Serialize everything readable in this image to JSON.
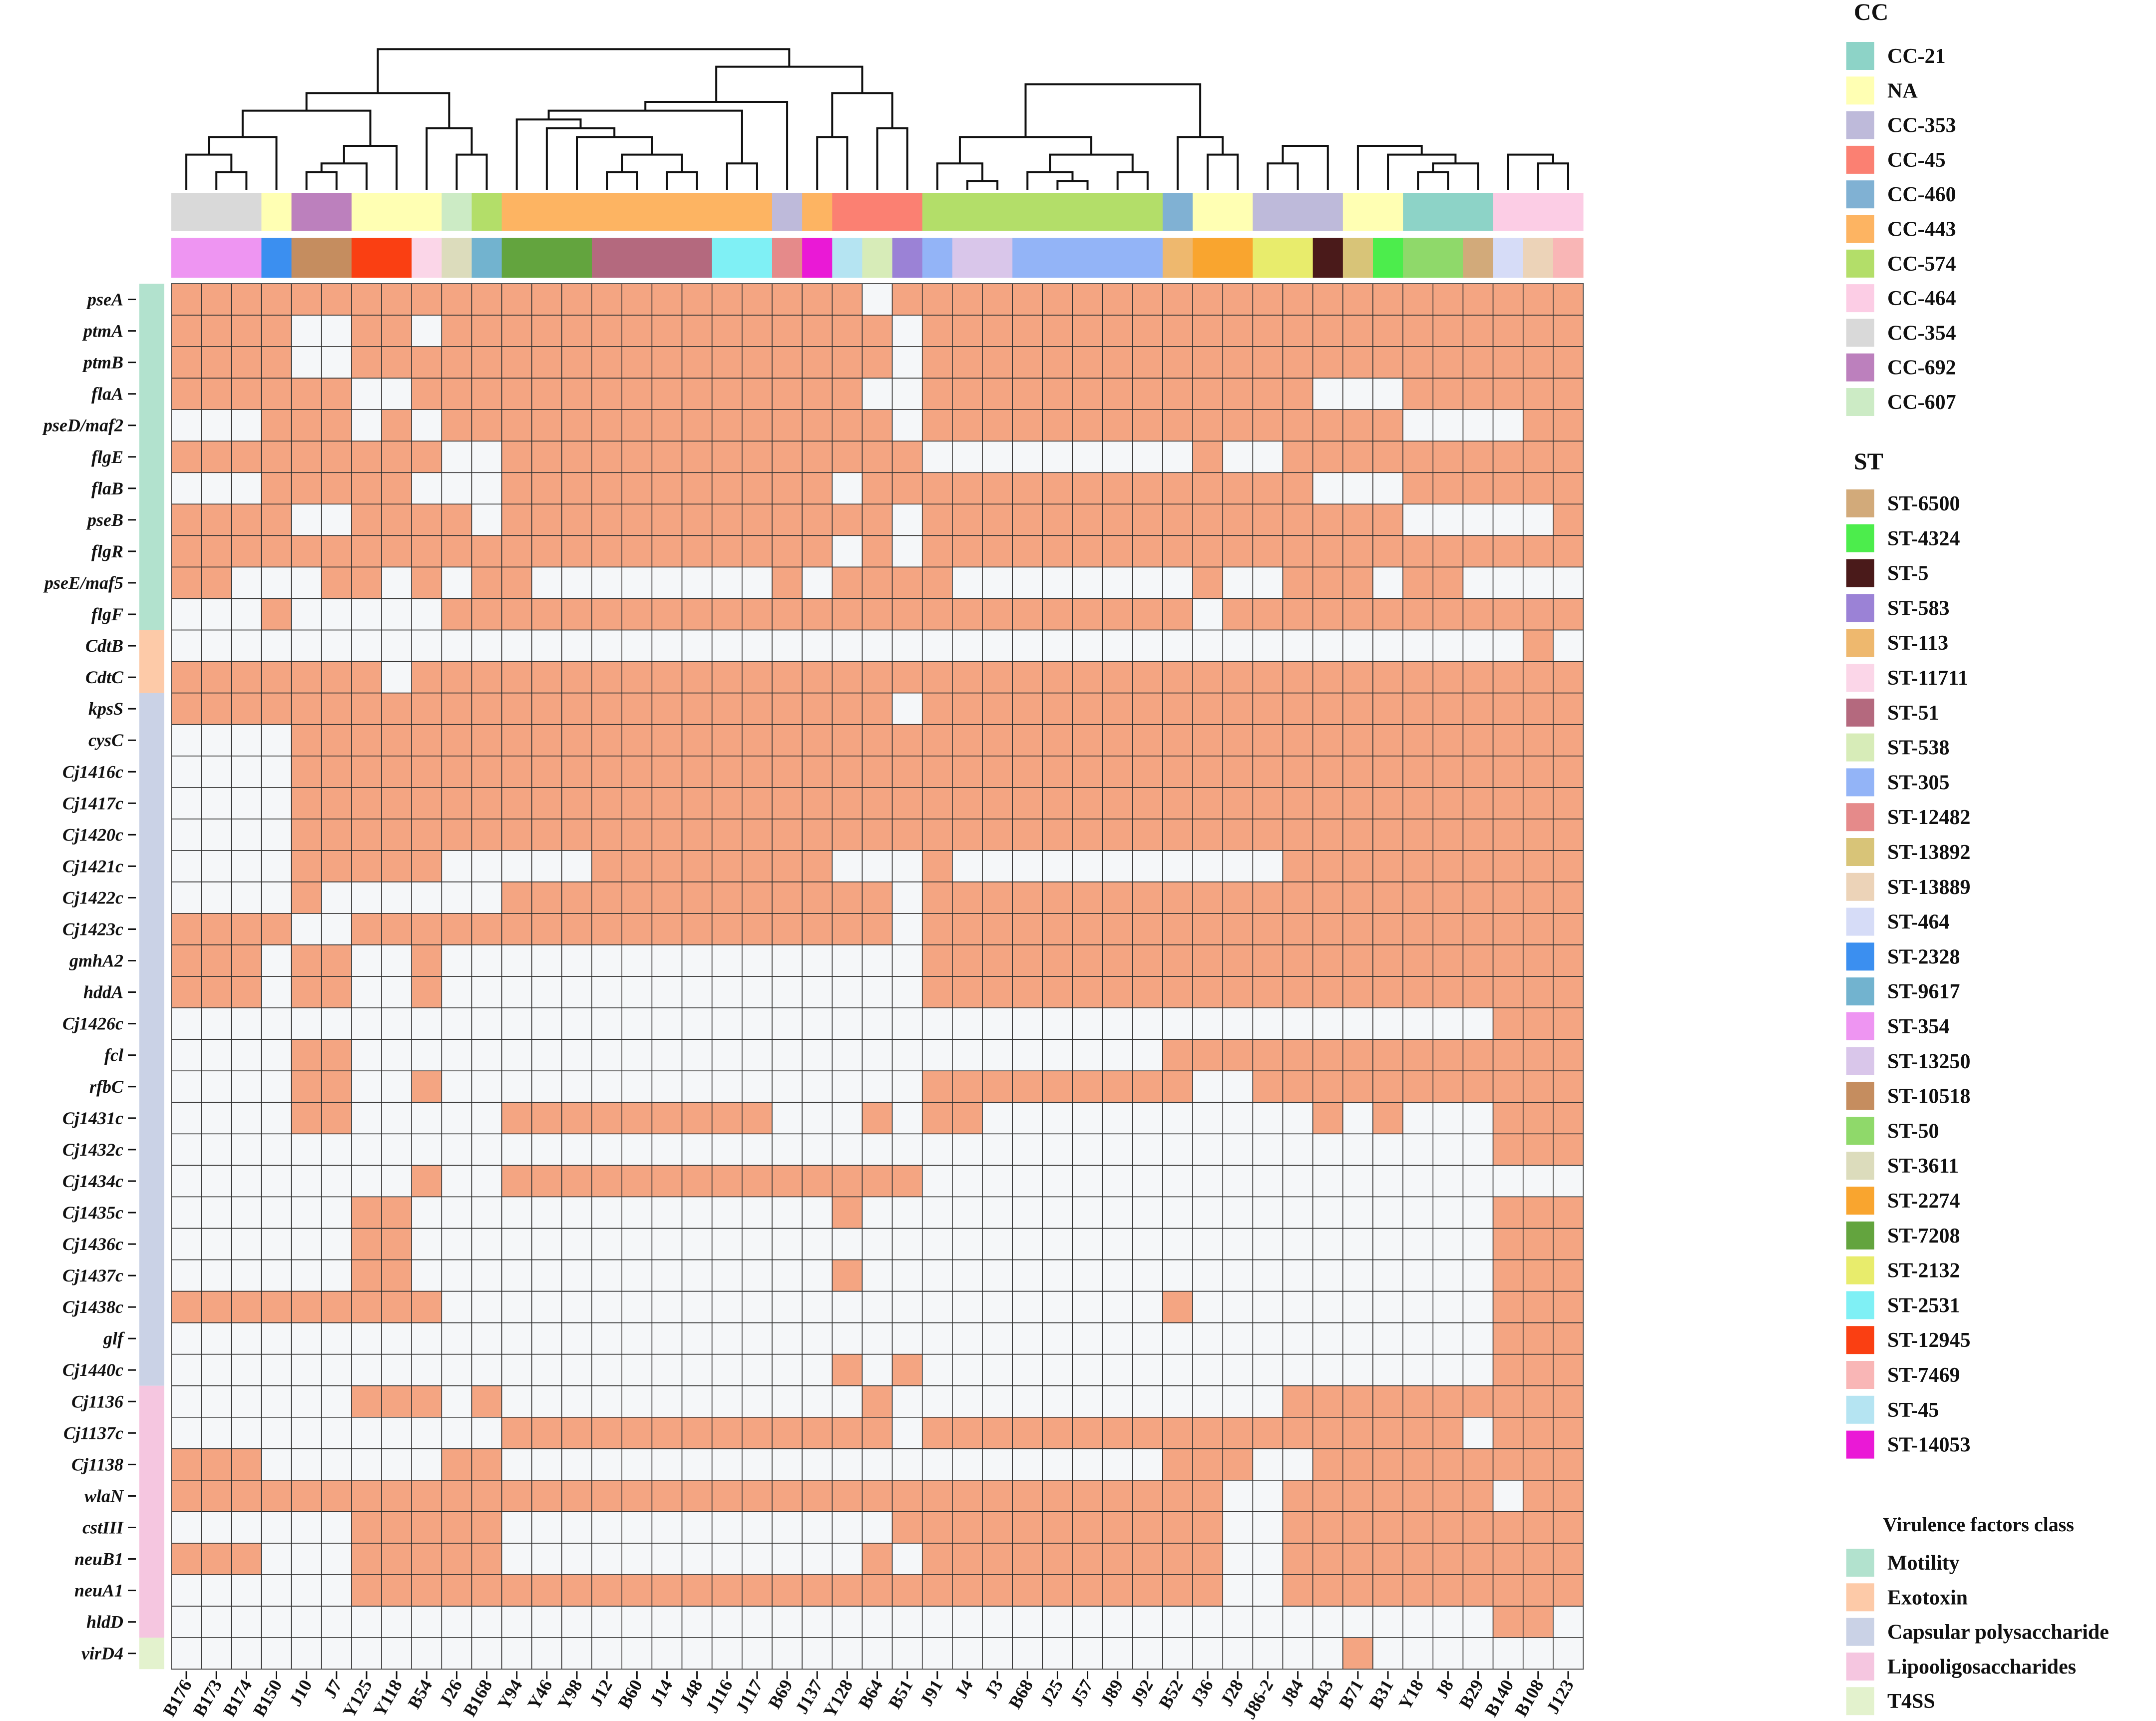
{
  "chart_data": {
    "type": "heatmap",
    "presence_color": "#f4a582",
    "absence_color": "#f5f7f9",
    "grid_color": "#333333",
    "columns": [
      "B176",
      "B173",
      "B174",
      "B150",
      "J10",
      "J7",
      "Y125",
      "Y118",
      "B54",
      "J26",
      "B168",
      "Y94",
      "Y46",
      "Y98",
      "J12",
      "B60",
      "J14",
      "J48",
      "J116",
      "J117",
      "B69",
      "J137",
      "Y128",
      "B64",
      "B51",
      "J91",
      "J4",
      "J3",
      "B68",
      "J25",
      "J57",
      "J89",
      "J92",
      "B52",
      "J36",
      "J28",
      "J86-2",
      "J84",
      "B43",
      "B71",
      "B31",
      "Y18",
      "J8",
      "B29",
      "B140",
      "B108",
      "J123"
    ],
    "rows": [
      "pseA",
      "ptmA",
      "ptmB",
      "flaA",
      "pseD/maf2",
      "flgE",
      "flaB",
      "pseB",
      "flgR",
      "pseE/maf5",
      "flgF",
      "CdtB",
      "CdtC",
      "kpsS",
      "cysC",
      "Cj1416c",
      "Cj1417c",
      "Cj1420c",
      "Cj1421c",
      "Cj1422c",
      "Cj1423c",
      "gmhA2",
      "hddA",
      "Cj1426c",
      "fcl",
      "rfbC",
      "Cj1431c",
      "Cj1432c",
      "Cj1434c",
      "Cj1435c",
      "Cj1436c",
      "Cj1437c",
      "Cj1438c",
      "glf",
      "Cj1440c",
      "Cj1136",
      "Cj1137c",
      "Cj1138",
      "wlaN",
      "cstIII",
      "neuB1",
      "neuA1",
      "hldD",
      "virD4"
    ],
    "matrix": [
      "11111111111111111111111011111111111111111111111",
      "11110011011111111111111101111111111111111111111",
      "11110011111111111111111101111111111111111111111",
      "11111100111111111111111001111111111111000111111",
      "00011101011111111111111101111111111111111000011",
      "11111111100111111111111110000000001001111111111",
      "00011111000111111111110111111111111111000111111",
      "11110011110111111111111101111111111111111000001",
      "11111111111111111111110101111111111111111111111",
      "11000110101100000000101111000000001001110110000",
      "00010000011111111111111111111111110111111111111",
      "00000000000000000000000000000000000000000000010",
      "11111110111111111111111111111111111111111111111",
      "11111111111111111111111101111111111111111111111",
      "00001111111111111111111111111111111111111111111",
      "00001111111111111111111111111111111111111111111",
      "00001111111111111111111111111111111111111111111",
      "00001111111111111111111111111111111111111111111",
      "00001111100000111111110001000000000001111111111",
      "00001000000111111111111101111111111111111111111",
      "11110011111111111111111101111111111111111111111",
      "11101100100000000000000001111111111111111111111",
      "11101100100000000000000001111111111111111111111",
      "00000000000000000000000000000000000000000000111",
      "00001100000000000000000000000000011111111111111",
      "00001100100000000000000001111111110011111111111",
      "00001100000111111111000101100000000000101000111",
      "00000000000000000000000000000000000000000000111",
      "00000000100111111111111110000000000000000000000",
      "00000011000000000000001000000000000000000000111",
      "00000011000000000000000000000000000000000000111",
      "00000011000000000000001000000000000000000000111",
      "11111111100000000000000000000000010000000000111",
      "00000000000000000000000000000000000000000000111",
      "00000000000000000000001010000000000000000000111",
      "00000011101000000000000100000000000001111111111",
      "00000000000111111111111101111111111111111110111",
      "11100000011000000000000000000000011100111111111",
      "11111111111111111111111111111111111001111111011",
      "00000011111000000000000011111111111001111111111",
      "11100011111000000000000101111111111001111111111",
      "00000011111111111111111111111111111001111111111",
      "00000000000000000000000000000000000000000000110",
      "00000000000000000000000000000000000000010000000"
    ],
    "row_class_groups": [
      {
        "class": "Motility",
        "count": 11
      },
      {
        "class": "Exotoxin",
        "count": 2
      },
      {
        "class": "Capsular polysaccharide",
        "count": 22
      },
      {
        "class": "Lipooligosaccharides",
        "count": 8
      },
      {
        "class": "T4SS",
        "count": 1
      }
    ],
    "cc_annotation_runs": [
      {
        "label": "CC-354",
        "count": 3
      },
      {
        "label": "NA",
        "count": 1
      },
      {
        "label": "CC-692",
        "count": 2
      },
      {
        "label": "NA",
        "count": 3
      },
      {
        "label": "CC-607",
        "count": 1
      },
      {
        "label": "CC-574",
        "count": 1
      },
      {
        "label": "CC-443",
        "count": 9
      },
      {
        "label": "CC-353",
        "count": 1
      },
      {
        "label": "CC-443",
        "count": 1
      },
      {
        "label": "CC-45",
        "count": 3
      },
      {
        "label": "CC-574",
        "count": 8
      },
      {
        "label": "CC-460",
        "count": 1
      },
      {
        "label": "NA",
        "count": 2
      },
      {
        "label": "CC-353",
        "count": 3
      },
      {
        "label": "NA",
        "count": 2
      },
      {
        "label": "CC-21",
        "count": 3
      },
      {
        "label": "CC-464",
        "count": 3
      }
    ],
    "st_annotation_runs": [
      {
        "label": "ST-354",
        "count": 3
      },
      {
        "label": "ST-2328",
        "count": 1
      },
      {
        "label": "ST-10518",
        "count": 2
      },
      {
        "label": "ST-12945",
        "count": 2
      },
      {
        "label": "ST-11711",
        "count": 1
      },
      {
        "label": "ST-3611",
        "count": 1
      },
      {
        "label": "ST-9617",
        "count": 1
      },
      {
        "label": "ST-7208",
        "count": 3
      },
      {
        "label": "ST-51",
        "count": 4
      },
      {
        "label": "ST-2531",
        "count": 2
      },
      {
        "label": "ST-12482",
        "count": 1
      },
      {
        "label": "ST-14053",
        "count": 1
      },
      {
        "label": "ST-45",
        "count": 1
      },
      {
        "label": "ST-538",
        "count": 1
      },
      {
        "label": "ST-583",
        "count": 1
      },
      {
        "label": "ST-305",
        "count": 1
      },
      {
        "label": "ST-13250",
        "count": 2
      },
      {
        "label": "ST-305",
        "count": 5
      },
      {
        "label": "ST-113",
        "count": 1
      },
      {
        "label": "ST-2274",
        "count": 2
      },
      {
        "label": "ST-2132",
        "count": 2
      },
      {
        "label": "ST-5",
        "count": 1
      },
      {
        "label": "ST-13892",
        "count": 1
      },
      {
        "label": "ST-4324",
        "count": 1
      },
      {
        "label": "ST-50",
        "count": 2
      },
      {
        "label": "ST-6500",
        "count": 1
      },
      {
        "label": "ST-464",
        "count": 1
      },
      {
        "label": "ST-13889",
        "count": 1
      },
      {
        "label": "ST-7469",
        "count": 1
      }
    ],
    "dendrogram_merges": [
      {
        "a": "B173",
        "b": "B174",
        "h": 0.1
      },
      {
        "a": "B176",
        "b": "B173+B174",
        "h": 0.2
      },
      {
        "a": "J10",
        "b": "J7",
        "h": 0.1
      },
      {
        "a": "B176+B173+B174",
        "b": "B150",
        "h": 0.3
      },
      {
        "a": "J10+J7",
        "b": "Y125",
        "h": 0.15
      },
      {
        "a": "J10+J7+Y125",
        "b": "Y118",
        "h": 0.25
      },
      {
        "a": "B176-B150",
        "b": "J10-Y118",
        "h": 0.45
      },
      {
        "a": "J26",
        "b": "B168",
        "h": 0.2
      },
      {
        "a": "B54",
        "b": "J26+B168",
        "h": 0.35
      },
      {
        "a": "B176-Y118",
        "b": "B54-B168",
        "h": 0.55
      },
      {
        "a": "J12",
        "b": "B60",
        "h": 0.1
      },
      {
        "a": "J14",
        "b": "J48",
        "h": 0.1
      },
      {
        "a": "J12+B60",
        "b": "J14+J48",
        "h": 0.2
      },
      {
        "a": "Y98",
        "b": "J12-J48",
        "h": 0.3
      },
      {
        "a": "Y46",
        "b": "Y98-J48",
        "h": 0.35
      },
      {
        "a": "Y94",
        "b": "Y46-J48",
        "h": 0.4
      },
      {
        "a": "J116",
        "b": "J117",
        "h": 0.15
      },
      {
        "a": "Y94-J48",
        "b": "J116+J117",
        "h": 0.45
      },
      {
        "a": "Y94-J117",
        "b": "B69",
        "h": 0.5
      },
      {
        "a": "J137",
        "b": "Y128",
        "h": 0.3
      },
      {
        "a": "B64",
        "b": "B51",
        "h": 0.35
      },
      {
        "a": "J137+Y128",
        "b": "B64+B51",
        "h": 0.55
      },
      {
        "a": "Y94-B69",
        "b": "J137-B51",
        "h": 0.7
      },
      {
        "a": "B176-B168",
        "b": "Y94-B51",
        "h": 0.8
      },
      {
        "a": "J4",
        "b": "J3",
        "h": 0.05
      },
      {
        "a": "J91",
        "b": "J4+J3",
        "h": 0.15
      },
      {
        "a": "J25",
        "b": "J57",
        "h": 0.05
      },
      {
        "a": "B68",
        "b": "J25+J57",
        "h": 0.1
      },
      {
        "a": "J89",
        "b": "J92",
        "h": 0.1
      },
      {
        "a": "B68-J57",
        "b": "J89+J92",
        "h": 0.2
      },
      {
        "a": "J91-J3",
        "b": "B68-J92",
        "h": 0.3
      },
      {
        "a": "J36",
        "b": "J28",
        "h": 0.2
      },
      {
        "a": "B52",
        "b": "J36+J28",
        "h": 0.3
      },
      {
        "a": "J91-J92",
        "b": "B52-J28",
        "h": 0.6
      },
      {
        "a": "J86-2",
        "b": "J84",
        "h": 0.15
      },
      {
        "a": "J86-2+J84",
        "b": "B43",
        "h": 0.25
      },
      {
        "a": "Y18",
        "b": "J8",
        "h": 0.1
      },
      {
        "a": "Y18+J8",
        "b": "B29",
        "h": 0.15
      },
      {
        "a": "B31",
        "b": "Y18-B29",
        "h": 0.2
      },
      {
        "a": "B71",
        "b": "B31-B29",
        "h": 0.25
      },
      {
        "a": "J86-2-B43",
        "b": "B71-B29",
        "h": 0.5
      },
      {
        "a": "B108",
        "b": "J123",
        "h": 0.15
      },
      {
        "a": "B140",
        "b": "B108+J123",
        "h": 0.2
      },
      {
        "a": "J86-2-B29",
        "b": "B140-J123",
        "h": 0.55
      },
      {
        "a": "J91-J28",
        "b": "J86-2-J123",
        "h": 0.75
      },
      {
        "a": "B176-B51",
        "b": "J91-J123",
        "h": 1.0
      }
    ],
    "legend_cc": {
      "title": "CC",
      "items": [
        {
          "label": "CC-21",
          "color": "#8dd3c7"
        },
        {
          "label": "NA",
          "color": "#ffffb3"
        },
        {
          "label": "CC-353",
          "color": "#bebada"
        },
        {
          "label": "CC-45",
          "color": "#fb8072"
        },
        {
          "label": "CC-460",
          "color": "#80b1d3"
        },
        {
          "label": "CC-443",
          "color": "#fdb462"
        },
        {
          "label": "CC-574",
          "color": "#b3de69"
        },
        {
          "label": "CC-464",
          "color": "#fccde5"
        },
        {
          "label": "CC-354",
          "color": "#d9d9d9"
        },
        {
          "label": "CC-692",
          "color": "#bc80bd"
        },
        {
          "label": "CC-607",
          "color": "#ccebc5"
        }
      ]
    },
    "legend_st": {
      "title": "ST",
      "items": [
        {
          "label": "ST-6500",
          "color": "#d2aa7a"
        },
        {
          "label": "ST-4324",
          "color": "#4ced4c"
        },
        {
          "label": "ST-5",
          "color": "#4a1a1a"
        },
        {
          "label": "ST-583",
          "color": "#9b82d6"
        },
        {
          "label": "ST-113",
          "color": "#eeb86e"
        },
        {
          "label": "ST-11711",
          "color": "#fbd6e8"
        },
        {
          "label": "ST-51",
          "color": "#b4697e"
        },
        {
          "label": "ST-538",
          "color": "#d7ecb8"
        },
        {
          "label": "ST-305",
          "color": "#93b4f7"
        },
        {
          "label": "ST-12482",
          "color": "#e58a8a"
        },
        {
          "label": "ST-13892",
          "color": "#d8c478"
        },
        {
          "label": "ST-13889",
          "color": "#ecd3b8"
        },
        {
          "label": "ST-464",
          "color": "#d6dcf7"
        },
        {
          "label": "ST-2328",
          "color": "#3b8ff0"
        },
        {
          "label": "ST-9617",
          "color": "#72b3cf"
        },
        {
          "label": "ST-354",
          "color": "#ee95f2"
        },
        {
          "label": "ST-13250",
          "color": "#d9c6ea"
        },
        {
          "label": "ST-10518",
          "color": "#c58d5f"
        },
        {
          "label": "ST-50",
          "color": "#8fd96a"
        },
        {
          "label": "ST-3611",
          "color": "#dcdcbc"
        },
        {
          "label": "ST-2274",
          "color": "#f9a52f"
        },
        {
          "label": "ST-7208",
          "color": "#63a43e"
        },
        {
          "label": "ST-2132",
          "color": "#e8ec6c"
        },
        {
          "label": "ST-2531",
          "color": "#7ff0f5"
        },
        {
          "label": "ST-12945",
          "color": "#fa3f12"
        },
        {
          "label": "ST-7469",
          "color": "#f9b6b6"
        },
        {
          "label": "ST-45",
          "color": "#b5e4f2"
        },
        {
          "label": "ST-14053",
          "color": "#ea19d6"
        }
      ]
    },
    "legend_class": {
      "title": "Virulence factors class",
      "items": [
        {
          "label": "Motility",
          "color": "#b2e2ce"
        },
        {
          "label": "Exotoxin",
          "color": "#fdcaa8"
        },
        {
          "label": "Capsular polysaccharide",
          "color": "#cad2e6"
        },
        {
          "label": "Lipooligosaccharides",
          "color": "#f5c6e0"
        },
        {
          "label": "T4SS",
          "color": "#e3f2cd"
        }
      ]
    }
  }
}
